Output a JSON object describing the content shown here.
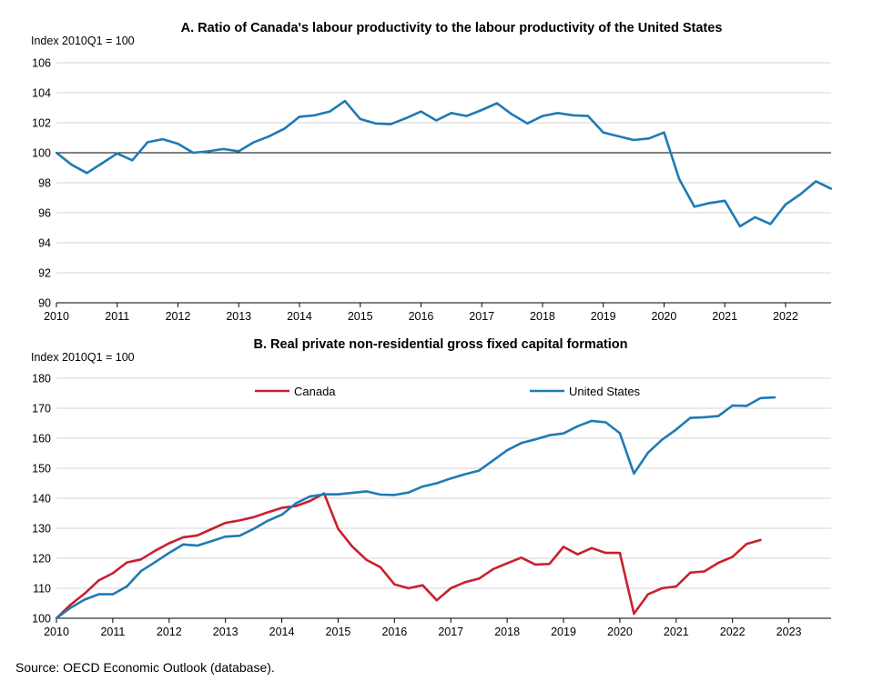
{
  "source": "Source: OECD Economic Outlook (database).",
  "chart_data": [
    {
      "type": "line",
      "title": "A. Ratio of Canada's labour productivity to the labour productivity of the United States",
      "ylabel": "Index 2010Q1 = 100",
      "ylim": [
        90,
        106
      ],
      "yticks": [
        90,
        92,
        94,
        96,
        98,
        100,
        102,
        104,
        106
      ],
      "xlim": [
        2010,
        2022.75
      ],
      "xticks": [
        2010,
        2011,
        2012,
        2013,
        2014,
        2015,
        2016,
        2017,
        2018,
        2019,
        2020,
        2021,
        2022
      ],
      "reference_line": 100,
      "grid": true,
      "colors": {
        "series": "#1f7ab5",
        "reference": "#000000"
      },
      "series": [
        {
          "name": "Canada / United States",
          "color": "#1f7ab5",
          "start": 2010,
          "step": 0.25,
          "values": [
            100.0,
            99.2,
            98.65,
            99.3,
            99.95,
            99.5,
            100.7,
            100.9,
            100.6,
            100.0,
            100.1,
            100.25,
            100.1,
            100.7,
            101.1,
            101.6,
            102.4,
            102.5,
            102.75,
            103.45,
            102.25,
            101.95,
            101.9,
            102.3,
            102.75,
            102.15,
            102.65,
            102.45,
            102.85,
            103.3,
            102.55,
            101.95,
            102.45,
            102.65,
            102.5,
            102.45,
            101.35,
            101.1,
            100.85,
            100.95,
            101.35,
            98.25,
            96.4,
            96.65,
            96.8,
            95.1,
            95.7,
            95.25,
            96.55,
            97.25,
            98.1,
            97.6
          ]
        }
      ]
    },
    {
      "type": "line",
      "title": "B. Real private non-residential gross fixed capital formation",
      "ylabel": "Index 2010Q1 = 100",
      "ylim": [
        100,
        180
      ],
      "yticks": [
        100,
        110,
        120,
        130,
        140,
        150,
        160,
        170,
        180
      ],
      "xlim": [
        2010,
        2023.75
      ],
      "xticks": [
        2010,
        2011,
        2012,
        2013,
        2014,
        2015,
        2016,
        2017,
        2018,
        2019,
        2020,
        2021,
        2022,
        2023
      ],
      "grid": true,
      "legend": [
        "Canada",
        "United States"
      ],
      "legend_position": "top",
      "series": [
        {
          "name": "Canada",
          "color": "#c8202e",
          "start": 2010,
          "step": 0.25,
          "values": [
            100.0,
            104.5,
            108.2,
            112.6,
            115.0,
            118.6,
            119.6,
            122.5,
            125.0,
            127.0,
            127.6,
            129.7,
            131.8,
            132.6,
            133.7,
            135.3,
            136.8,
            137.4,
            139.1,
            141.6,
            129.8,
            123.9,
            119.5,
            117.0,
            111.3,
            110.0,
            111.0,
            106.0,
            110.0,
            112.0,
            113.2,
            116.4,
            118.3,
            120.2,
            117.9,
            118.1,
            123.8,
            121.3,
            123.4,
            121.8,
            121.8,
            101.5,
            108.0,
            110.0,
            110.6,
            115.2,
            115.6,
            118.5,
            120.5,
            124.8,
            126.1
          ]
        },
        {
          "name": "United States",
          "color": "#1f7ab5",
          "start": 2010,
          "step": 0.25,
          "values": [
            100.0,
            103.5,
            106.2,
            108.0,
            108.0,
            110.6,
            115.7,
            118.7,
            121.8,
            124.6,
            124.2,
            125.7,
            127.2,
            127.5,
            129.8,
            132.5,
            134.5,
            138.3,
            140.6,
            141.3,
            141.3,
            141.8,
            142.3,
            141.2,
            141.1,
            141.9,
            143.9,
            145.0,
            146.6,
            148.0,
            149.2,
            152.6,
            156.0,
            158.4,
            159.6,
            161.0,
            161.6,
            164.0,
            165.8,
            165.3,
            161.7,
            148.2,
            155.2,
            159.5,
            162.9,
            166.8,
            167.0,
            167.4,
            170.9,
            170.8,
            173.4,
            173.6
          ]
        }
      ]
    }
  ]
}
